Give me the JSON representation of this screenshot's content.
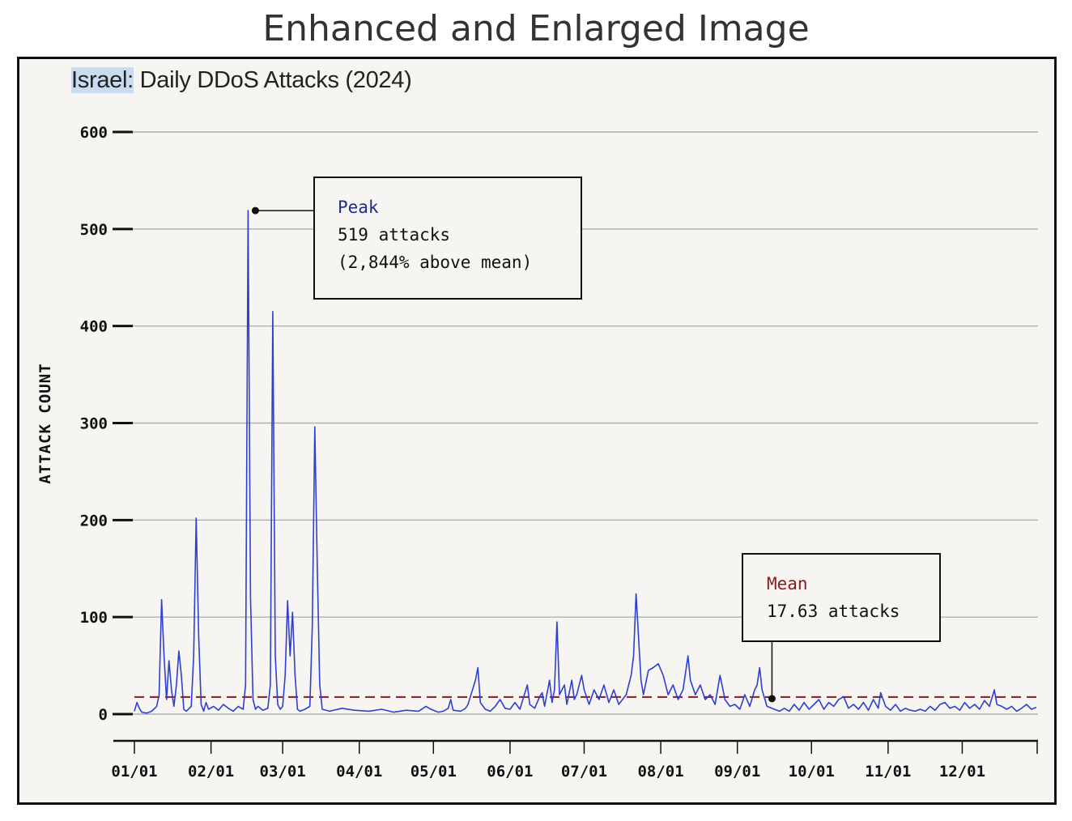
{
  "page_title": "Enhanced and Enlarged Image",
  "chart_data": {
    "type": "line",
    "title_prefix": "Israel:",
    "title_rest": " Daily DDoS Attacks (2024)",
    "ylabel": "ATTACK COUNT",
    "xlabel": "",
    "ylim": [
      -25,
      600
    ],
    "yticks": [
      0,
      100,
      200,
      300,
      400,
      500,
      600
    ],
    "ytick_labels": [
      "0",
      "100",
      "200",
      "300",
      "400",
      "500",
      "600"
    ],
    "x_axis": {
      "start_date": "2024-01-01",
      "end_date": "2024-12-31"
    },
    "x_tick_dates": [
      "2024-01-01",
      "2024-02-01",
      "2024-03-01",
      "2024-04-01",
      "2024-05-01",
      "2024-06-01",
      "2024-07-01",
      "2024-08-01",
      "2024-09-01",
      "2024-10-01",
      "2024-11-01",
      "2024-12-01"
    ],
    "x_tick_labels": [
      "01/01",
      "02/01",
      "03/01",
      "04/01",
      "05/01",
      "06/01",
      "07/01",
      "08/01",
      "09/01",
      "10/01",
      "11/01",
      "12/01"
    ],
    "grid": true,
    "series": [
      {
        "color": "#2f3fd0",
        "points": [
          [
            "2024-01-01",
            3
          ],
          [
            "2024-01-02",
            12
          ],
          [
            "2024-01-03",
            6
          ],
          [
            "2024-01-04",
            2
          ],
          [
            "2024-01-06",
            1
          ],
          [
            "2024-01-08",
            3
          ],
          [
            "2024-01-10",
            8
          ],
          [
            "2024-01-11",
            20
          ],
          [
            "2024-01-12",
            118
          ],
          [
            "2024-01-13",
            60
          ],
          [
            "2024-01-14",
            15
          ],
          [
            "2024-01-15",
            55
          ],
          [
            "2024-01-16",
            25
          ],
          [
            "2024-01-17",
            8
          ],
          [
            "2024-01-18",
            30
          ],
          [
            "2024-01-19",
            65
          ],
          [
            "2024-01-20",
            40
          ],
          [
            "2024-01-21",
            5
          ],
          [
            "2024-01-22",
            3
          ],
          [
            "2024-01-24",
            8
          ],
          [
            "2024-01-25",
            60
          ],
          [
            "2024-01-26",
            202
          ],
          [
            "2024-01-27",
            80
          ],
          [
            "2024-01-28",
            10
          ],
          [
            "2024-01-29",
            3
          ],
          [
            "2024-01-30",
            12
          ],
          [
            "2024-01-31",
            5
          ],
          [
            "2024-02-02",
            8
          ],
          [
            "2024-02-04",
            4
          ],
          [
            "2024-02-06",
            10
          ],
          [
            "2024-02-08",
            6
          ],
          [
            "2024-02-10",
            3
          ],
          [
            "2024-02-12",
            8
          ],
          [
            "2024-02-14",
            5
          ],
          [
            "2024-02-15",
            30
          ],
          [
            "2024-02-16",
            519
          ],
          [
            "2024-02-17",
            120
          ],
          [
            "2024-02-18",
            15
          ],
          [
            "2024-02-19",
            5
          ],
          [
            "2024-02-20",
            8
          ],
          [
            "2024-02-22",
            4
          ],
          [
            "2024-02-24",
            6
          ],
          [
            "2024-02-25",
            30
          ],
          [
            "2024-02-26",
            415
          ],
          [
            "2024-02-27",
            60
          ],
          [
            "2024-02-28",
            10
          ],
          [
            "2024-02-29",
            5
          ],
          [
            "2024-03-01",
            8
          ],
          [
            "2024-03-02",
            40
          ],
          [
            "2024-03-03",
            117
          ],
          [
            "2024-03-04",
            60
          ],
          [
            "2024-03-05",
            105
          ],
          [
            "2024-03-06",
            40
          ],
          [
            "2024-03-07",
            5
          ],
          [
            "2024-03-08",
            3
          ],
          [
            "2024-03-10",
            5
          ],
          [
            "2024-03-12",
            8
          ],
          [
            "2024-03-13",
            90
          ],
          [
            "2024-03-14",
            296
          ],
          [
            "2024-03-15",
            150
          ],
          [
            "2024-03-16",
            30
          ],
          [
            "2024-03-17",
            5
          ],
          [
            "2024-03-20",
            3
          ],
          [
            "2024-03-25",
            6
          ],
          [
            "2024-03-30",
            4
          ],
          [
            "2024-04-05",
            3
          ],
          [
            "2024-04-10",
            5
          ],
          [
            "2024-04-15",
            2
          ],
          [
            "2024-04-20",
            4
          ],
          [
            "2024-04-25",
            3
          ],
          [
            "2024-04-28",
            8
          ],
          [
            "2024-04-30",
            5
          ],
          [
            "2024-05-03",
            2
          ],
          [
            "2024-05-05",
            3
          ],
          [
            "2024-05-07",
            6
          ],
          [
            "2024-05-08",
            15
          ],
          [
            "2024-05-09",
            4
          ],
          [
            "2024-05-12",
            3
          ],
          [
            "2024-05-14",
            6
          ],
          [
            "2024-05-15",
            10
          ],
          [
            "2024-05-18",
            35
          ],
          [
            "2024-05-19",
            48
          ],
          [
            "2024-05-20",
            12
          ],
          [
            "2024-05-22",
            5
          ],
          [
            "2024-05-24",
            3
          ],
          [
            "2024-05-26",
            8
          ],
          [
            "2024-05-28",
            15
          ],
          [
            "2024-05-30",
            6
          ],
          [
            "2024-06-01",
            5
          ],
          [
            "2024-06-03",
            12
          ],
          [
            "2024-06-05",
            5
          ],
          [
            "2024-06-08",
            30
          ],
          [
            "2024-06-09",
            10
          ],
          [
            "2024-06-11",
            6
          ],
          [
            "2024-06-13",
            18
          ],
          [
            "2024-06-14",
            22
          ],
          [
            "2024-06-15",
            8
          ],
          [
            "2024-06-17",
            35
          ],
          [
            "2024-06-18",
            12
          ],
          [
            "2024-06-19",
            25
          ],
          [
            "2024-06-20",
            95
          ],
          [
            "2024-06-21",
            20
          ],
          [
            "2024-06-23",
            30
          ],
          [
            "2024-06-24",
            10
          ],
          [
            "2024-06-26",
            35
          ],
          [
            "2024-06-27",
            15
          ],
          [
            "2024-06-28",
            20
          ],
          [
            "2024-06-30",
            40
          ],
          [
            "2024-07-01",
            25
          ],
          [
            "2024-07-03",
            10
          ],
          [
            "2024-07-05",
            25
          ],
          [
            "2024-07-07",
            15
          ],
          [
            "2024-07-09",
            30
          ],
          [
            "2024-07-11",
            12
          ],
          [
            "2024-07-13",
            25
          ],
          [
            "2024-07-15",
            10
          ],
          [
            "2024-07-18",
            20
          ],
          [
            "2024-07-20",
            40
          ],
          [
            "2024-07-21",
            60
          ],
          [
            "2024-07-22",
            124
          ],
          [
            "2024-07-23",
            80
          ],
          [
            "2024-07-24",
            35
          ],
          [
            "2024-07-25",
            20
          ],
          [
            "2024-07-27",
            45
          ],
          [
            "2024-07-29",
            48
          ],
          [
            "2024-07-31",
            52
          ],
          [
            "2024-08-02",
            40
          ],
          [
            "2024-08-04",
            20
          ],
          [
            "2024-08-06",
            30
          ],
          [
            "2024-08-08",
            15
          ],
          [
            "2024-08-10",
            25
          ],
          [
            "2024-08-12",
            60
          ],
          [
            "2024-08-13",
            35
          ],
          [
            "2024-08-15",
            20
          ],
          [
            "2024-08-17",
            30
          ],
          [
            "2024-08-19",
            15
          ],
          [
            "2024-08-21",
            20
          ],
          [
            "2024-08-23",
            10
          ],
          [
            "2024-08-25",
            40
          ],
          [
            "2024-08-27",
            15
          ],
          [
            "2024-08-29",
            8
          ],
          [
            "2024-08-31",
            10
          ],
          [
            "2024-09-02",
            5
          ],
          [
            "2024-09-04",
            20
          ],
          [
            "2024-09-06",
            8
          ],
          [
            "2024-09-08",
            25
          ],
          [
            "2024-09-09",
            30
          ],
          [
            "2024-09-10",
            48
          ],
          [
            "2024-09-11",
            25
          ],
          [
            "2024-09-13",
            8
          ],
          [
            "2024-09-16",
            5
          ],
          [
            "2024-09-18",
            3
          ],
          [
            "2024-09-20",
            6
          ],
          [
            "2024-09-22",
            3
          ],
          [
            "2024-09-24",
            10
          ],
          [
            "2024-09-26",
            4
          ],
          [
            "2024-09-28",
            12
          ],
          [
            "2024-09-30",
            5
          ],
          [
            "2024-10-02",
            10
          ],
          [
            "2024-10-04",
            15
          ],
          [
            "2024-10-06",
            5
          ],
          [
            "2024-10-08",
            12
          ],
          [
            "2024-10-10",
            8
          ],
          [
            "2024-10-12",
            15
          ],
          [
            "2024-10-14",
            18
          ],
          [
            "2024-10-16",
            6
          ],
          [
            "2024-10-18",
            10
          ],
          [
            "2024-10-20",
            5
          ],
          [
            "2024-10-22",
            12
          ],
          [
            "2024-10-24",
            4
          ],
          [
            "2024-10-26",
            15
          ],
          [
            "2024-10-28",
            6
          ],
          [
            "2024-10-29",
            22
          ],
          [
            "2024-10-31",
            8
          ],
          [
            "2024-11-02",
            4
          ],
          [
            "2024-11-04",
            10
          ],
          [
            "2024-11-06",
            3
          ],
          [
            "2024-11-08",
            6
          ],
          [
            "2024-11-10",
            4
          ],
          [
            "2024-11-12",
            3
          ],
          [
            "2024-11-14",
            5
          ],
          [
            "2024-11-16",
            3
          ],
          [
            "2024-11-18",
            8
          ],
          [
            "2024-11-20",
            4
          ],
          [
            "2024-11-22",
            10
          ],
          [
            "2024-11-24",
            12
          ],
          [
            "2024-11-26",
            6
          ],
          [
            "2024-11-28",
            8
          ],
          [
            "2024-11-30",
            4
          ],
          [
            "2024-12-02",
            12
          ],
          [
            "2024-12-04",
            6
          ],
          [
            "2024-12-06",
            10
          ],
          [
            "2024-12-08",
            5
          ],
          [
            "2024-12-10",
            14
          ],
          [
            "2024-12-12",
            8
          ],
          [
            "2024-12-14",
            25
          ],
          [
            "2024-12-15",
            10
          ],
          [
            "2024-12-17",
            8
          ],
          [
            "2024-12-19",
            5
          ],
          [
            "2024-12-21",
            8
          ],
          [
            "2024-12-23",
            3
          ],
          [
            "2024-12-25",
            6
          ],
          [
            "2024-12-27",
            10
          ],
          [
            "2024-12-29",
            5
          ],
          [
            "2024-12-31",
            7
          ]
        ]
      }
    ],
    "mean": {
      "value": 17.63,
      "color": "#8b1a1a"
    },
    "annotations": [
      {
        "id": "peak",
        "heading": "Peak",
        "heading_color": "#1f2d8a",
        "lines": [
          "519 attacks",
          "(2,844% above mean)"
        ],
        "target_date": "2024-02-16",
        "target_value": 519
      },
      {
        "id": "mean",
        "heading": "Mean",
        "heading_color": "#8b1a1a",
        "lines": [
          "17.63 attacks"
        ],
        "target_date": "2024-09-15",
        "target_value": 17.63
      }
    ]
  }
}
